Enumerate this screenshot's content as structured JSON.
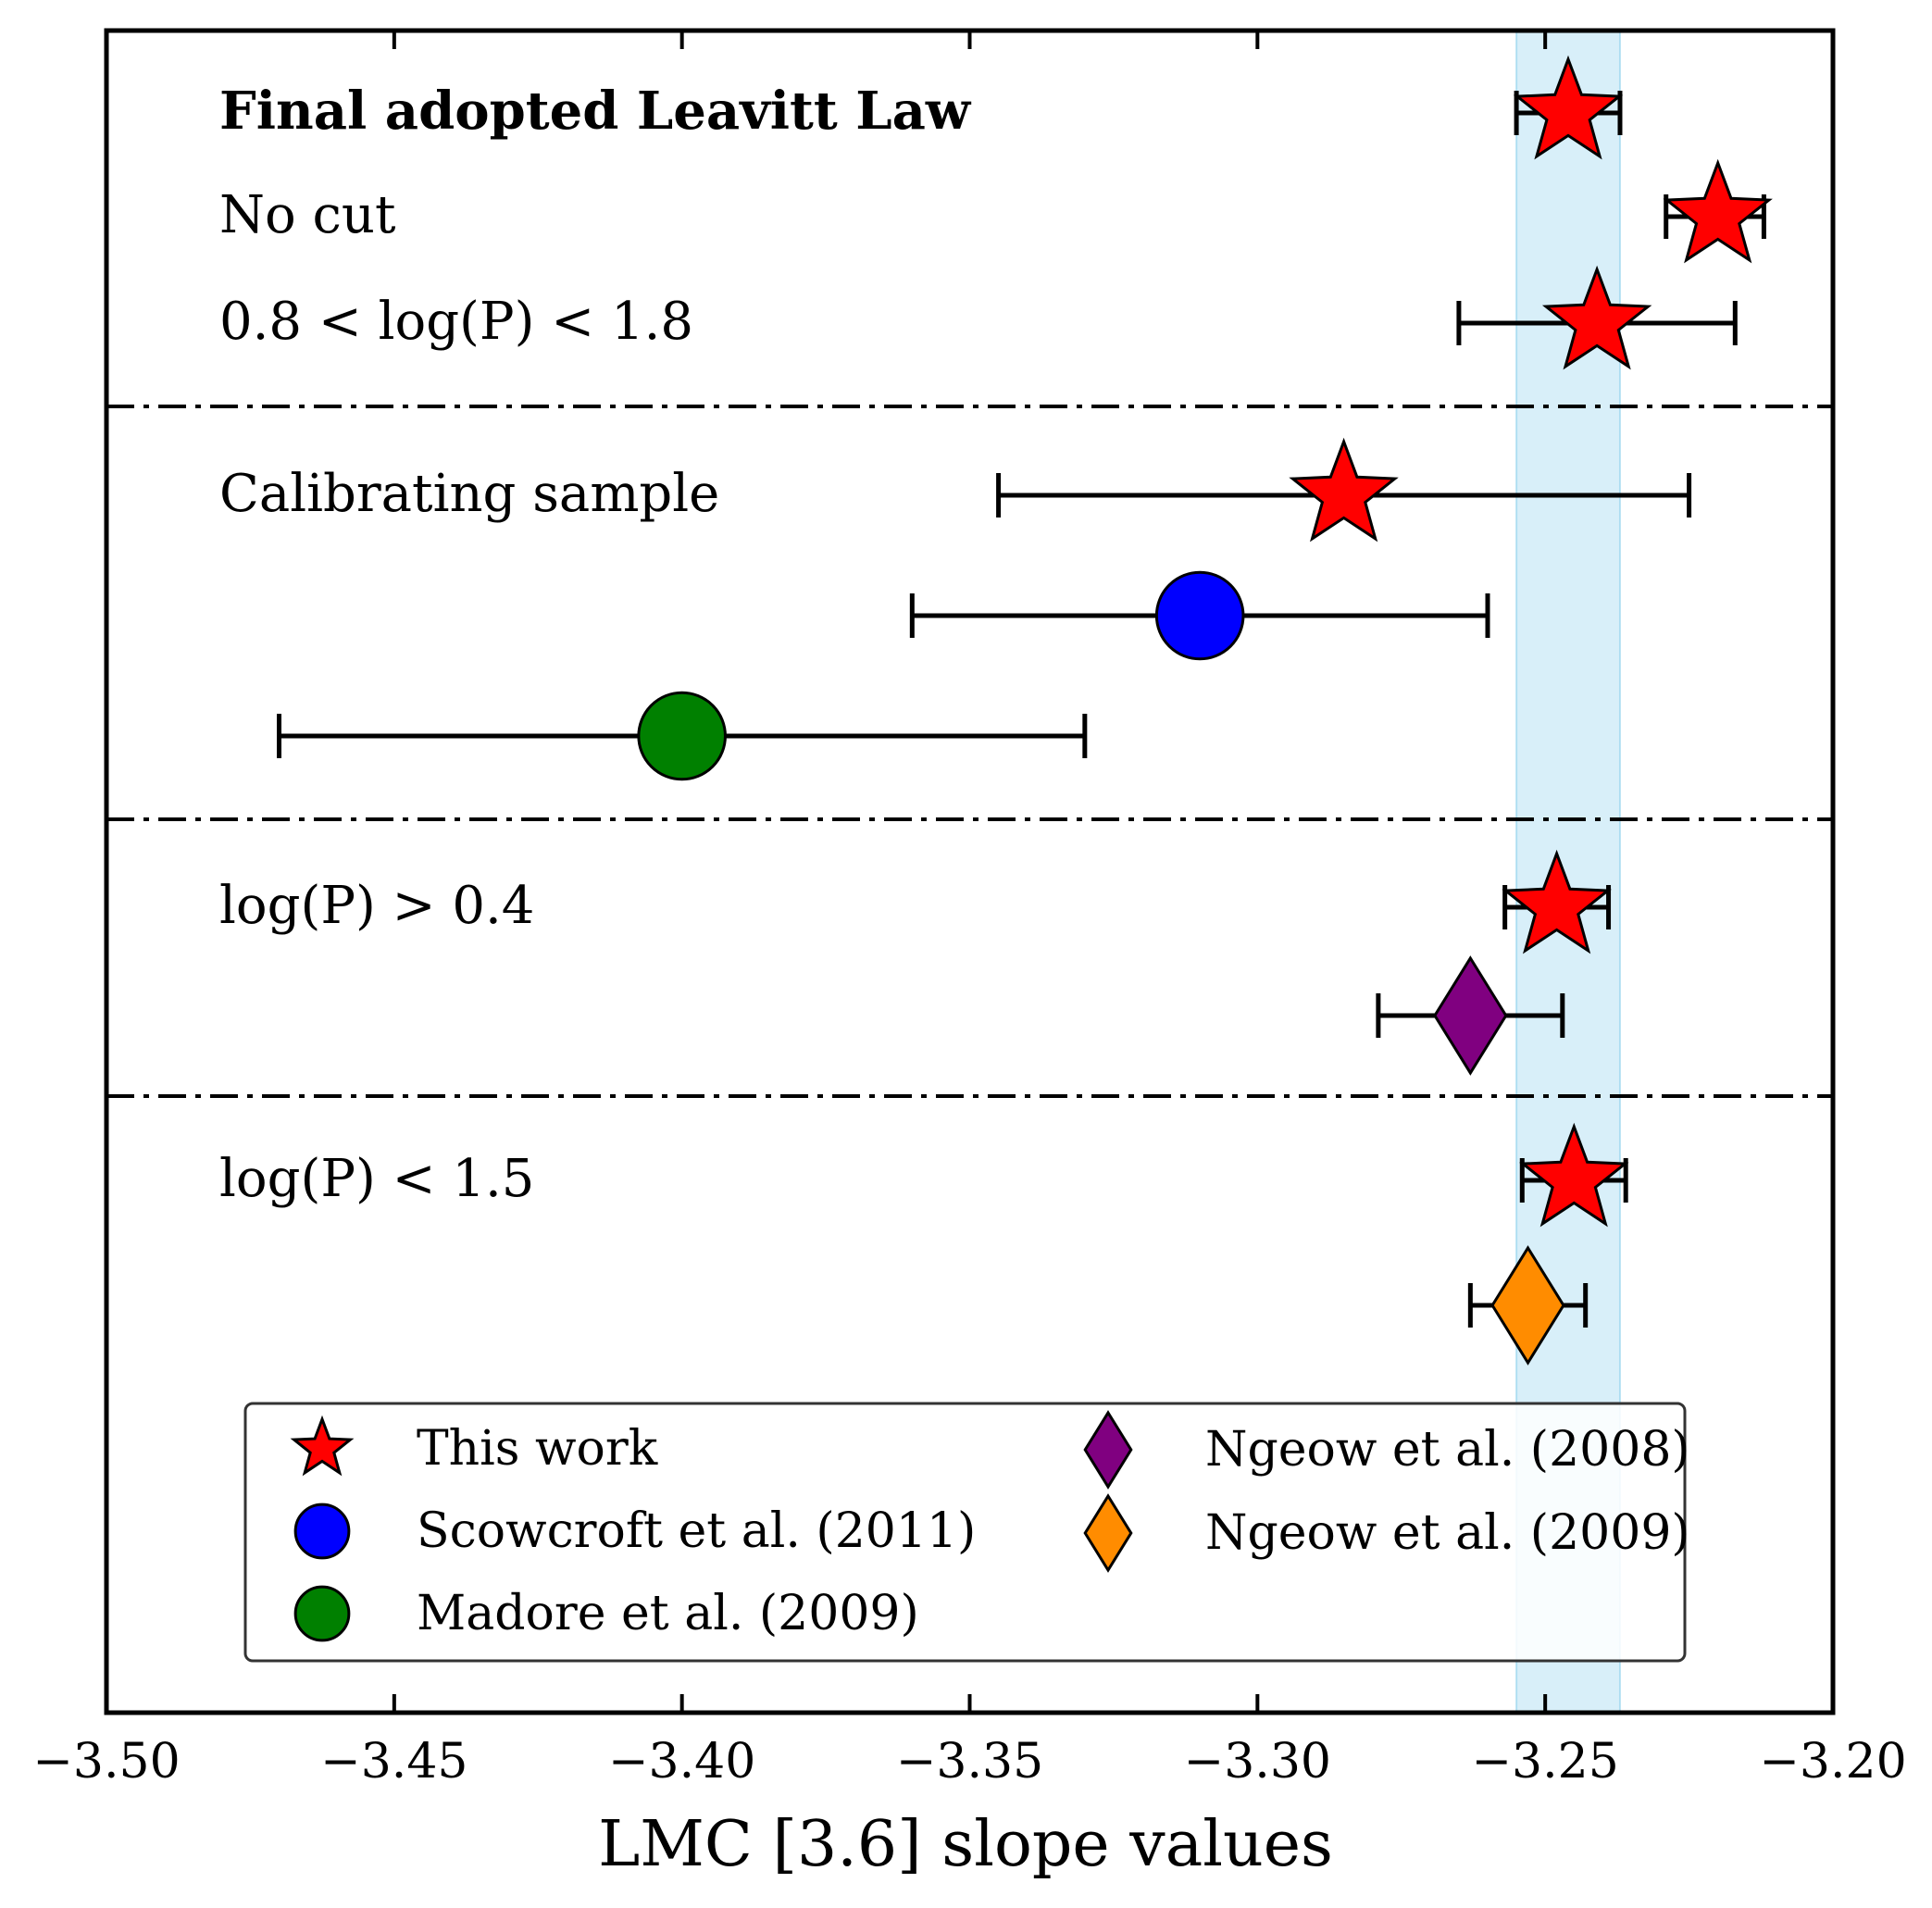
{
  "chart_data": {
    "type": "scatter",
    "xlabel": "LMC [3.6] slope values",
    "xlim": [
      -3.5,
      -3.2
    ],
    "x_ticks": [
      -3.5,
      -3.45,
      -3.4,
      -3.35,
      -3.3,
      -3.25,
      -3.2
    ],
    "x_tick_labels": [
      "−3.50",
      "−3.45",
      "−3.40",
      "−3.35",
      "−3.30",
      "−3.25",
      "−3.20"
    ],
    "shaded_band": {
      "from": -3.255,
      "to": -3.237,
      "color": "#87ceeb"
    },
    "sections": [
      {
        "key": "final",
        "rows": 3
      },
      {
        "key": "calib",
        "rows": 3
      },
      {
        "key": "gt04",
        "rows": 2
      },
      {
        "key": "lt15",
        "rows": 3
      }
    ],
    "annotations": [
      {
        "key": "final",
        "text": "Final adopted Leavitt Law",
        "bold": true,
        "row": 0
      },
      {
        "key": "nocut",
        "text": "No cut",
        "bold": false,
        "row": 1
      },
      {
        "key": "range",
        "text": "0.8 < log(P) < 1.8",
        "bold": false,
        "row": 2
      },
      {
        "key": "calib",
        "text": "Calibrating sample",
        "bold": false,
        "row": 3
      },
      {
        "key": "gt04",
        "text": "log(P) > 0.4",
        "bold": false,
        "row": 6
      },
      {
        "key": "lt15",
        "text": "log(P) < 1.5",
        "bold": false,
        "row": 8
      }
    ],
    "points": [
      {
        "series": "This work",
        "row": 0,
        "value": -3.246,
        "err_low": -3.255,
        "err_high": -3.237
      },
      {
        "series": "This work",
        "row": 1,
        "value": -3.22,
        "err_low": -3.229,
        "err_high": -3.212
      },
      {
        "series": "This work",
        "row": 2,
        "value": -3.241,
        "err_low": -3.265,
        "err_high": -3.217
      },
      {
        "series": "This work",
        "row": 3,
        "value": -3.285,
        "err_low": -3.345,
        "err_high": -3.225
      },
      {
        "series": "Scowcroft et al. (2011)",
        "row": 4,
        "value": -3.31,
        "err_low": -3.36,
        "err_high": -3.26
      },
      {
        "series": "Madore et al. (2009)",
        "row": 5,
        "value": -3.4,
        "err_low": -3.47,
        "err_high": -3.33
      },
      {
        "series": "This work",
        "row": 6,
        "value": -3.248,
        "err_low": -3.257,
        "err_high": -3.239
      },
      {
        "series": "Ngeow et al. (2008)",
        "row": 7,
        "value": -3.263,
        "err_low": -3.279,
        "err_high": -3.247
      },
      {
        "series": "This work",
        "row": 8,
        "value": -3.245,
        "err_low": -3.254,
        "err_high": -3.236
      },
      {
        "series": "Ngeow et al. (2009)",
        "row": 9,
        "value": -3.253,
        "err_low": -3.263,
        "err_high": -3.243
      }
    ],
    "legend": {
      "position": "lower-center",
      "entries": [
        {
          "label": "This work",
          "marker": "star",
          "color": "#ff0000"
        },
        {
          "label": "Scowcroft et al. (2011)",
          "marker": "circle",
          "color": "#0000ff"
        },
        {
          "label": "Madore et al. (2009)",
          "marker": "circle",
          "color": "#008000"
        },
        {
          "label": "Ngeow et al. (2008)",
          "marker": "diamond",
          "color": "#800080"
        },
        {
          "label": "Ngeow et al. (2009)",
          "marker": "diamond",
          "color": "#ff8c00"
        }
      ]
    }
  }
}
